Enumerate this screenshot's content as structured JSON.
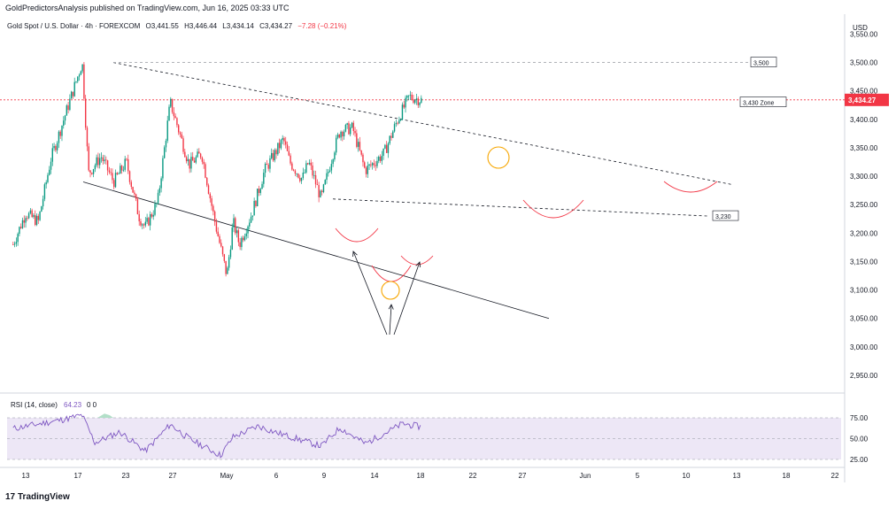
{
  "header": {
    "published_line": "GoldPredictorsAnalysis published on TradingView.com, Jun 16, 2025 03:33 UTC",
    "symbol": "Gold Spot / U.S. Dollar · 4h · FOREXCOM",
    "open": "O3,441.55",
    "high": "H3,446.44",
    "low": "L3,434.14",
    "close": "C3,434.27",
    "change": "−7.28 (−0.21%)"
  },
  "price_axis": {
    "currency": "USD",
    "ticks": [
      "3,550.00",
      "3,500.00",
      "3,450.00",
      "3,400.00",
      "3,350.00",
      "3,300.00",
      "3,250.00",
      "3,200.00",
      "3,150.00",
      "3,100.00",
      "3,050.00",
      "3,000.00",
      "2,950.00"
    ],
    "last_price": "3,434.27"
  },
  "rsi_panel": {
    "label": "RSI (14, close)",
    "value": "64.23",
    "extra": "0  0",
    "ticks": [
      "75.00",
      "50.00",
      "25.00"
    ]
  },
  "time_axis": {
    "ticks": [
      "13",
      "17",
      "23",
      "27",
      "May",
      "6",
      "9",
      "14",
      "18",
      "22",
      "27",
      "Jun",
      "5",
      "10",
      "13",
      "18",
      "22"
    ]
  },
  "annotations": {
    "level_3500": "3,500",
    "level_3430": "3,430 Zone",
    "level_3230": "3,230"
  },
  "branding": {
    "logo": "TradingView"
  },
  "colors": {
    "up": "#089981",
    "down": "#f23645",
    "highlight": "#f7a600",
    "rsi_line": "#7e57c2",
    "rsi_band": "#ede7f6"
  },
  "chart_data": {
    "type": "candlestick",
    "timeframe": "4h",
    "y_range": [
      2925,
      3585
    ],
    "rsi_range": [
      25,
      75
    ],
    "keypoints": [
      [
        "Apr 11",
        3180
      ],
      [
        "Apr 13",
        3235
      ],
      [
        "Apr 15",
        3220
      ],
      [
        "Apr 17",
        3330
      ],
      [
        "Apr 22",
        3500
      ],
      [
        "Apr 23",
        3305
      ],
      [
        "Apr 25",
        3335
      ],
      [
        "Apr 27",
        3290
      ],
      [
        "Apr 29",
        3325
      ],
      [
        "May 1",
        3230
      ],
      [
        "May 2",
        3210
      ],
      [
        "May 4",
        3255
      ],
      [
        "May 6",
        3430
      ],
      [
        "May 9",
        3320
      ],
      [
        "May 11",
        3340
      ],
      [
        "May 13",
        3225
      ],
      [
        "May 15",
        3125
      ],
      [
        "May 16",
        3220
      ],
      [
        "May 17",
        3180
      ],
      [
        "May 19",
        3235
      ],
      [
        "May 21",
        3310
      ],
      [
        "May 24",
        3365
      ],
      [
        "May 25",
        3325
      ],
      [
        "May 27",
        3295
      ],
      [
        "May 28",
        3325
      ],
      [
        "May 30",
        3260
      ],
      [
        "Jun 1",
        3345
      ],
      [
        "Jun 2",
        3380
      ],
      [
        "Jun 4",
        3385
      ],
      [
        "Jun 6",
        3310
      ],
      [
        "Jun 9",
        3340
      ],
      [
        "Jun 11",
        3395
      ],
      [
        "Jun 13",
        3440
      ],
      [
        "Jun 15",
        3434
      ]
    ],
    "rsi_keypoints": [
      [
        "Apr 11",
        62
      ],
      [
        "Apr 19",
        73
      ],
      [
        "Apr 22",
        78
      ],
      [
        "Apr 24",
        45
      ],
      [
        "Apr 28",
        58
      ],
      [
        "May 2",
        35
      ],
      [
        "May 6",
        67
      ],
      [
        "May 9",
        50
      ],
      [
        "May 14",
        30
      ],
      [
        "May 16",
        52
      ],
      [
        "May 20",
        65
      ],
      [
        "May 23",
        57
      ],
      [
        "May 30",
        41
      ],
      [
        "Jun 2",
        63
      ],
      [
        "Jun 6",
        44
      ],
      [
        "Jun 12",
        68
      ],
      [
        "Jun 15",
        64
      ]
    ],
    "levels": [
      {
        "label": "3,500",
        "value": 3500
      },
      {
        "label": "3,430 Zone",
        "value": 3430
      },
      {
        "label": "3,230",
        "value": 3230
      }
    ]
  }
}
